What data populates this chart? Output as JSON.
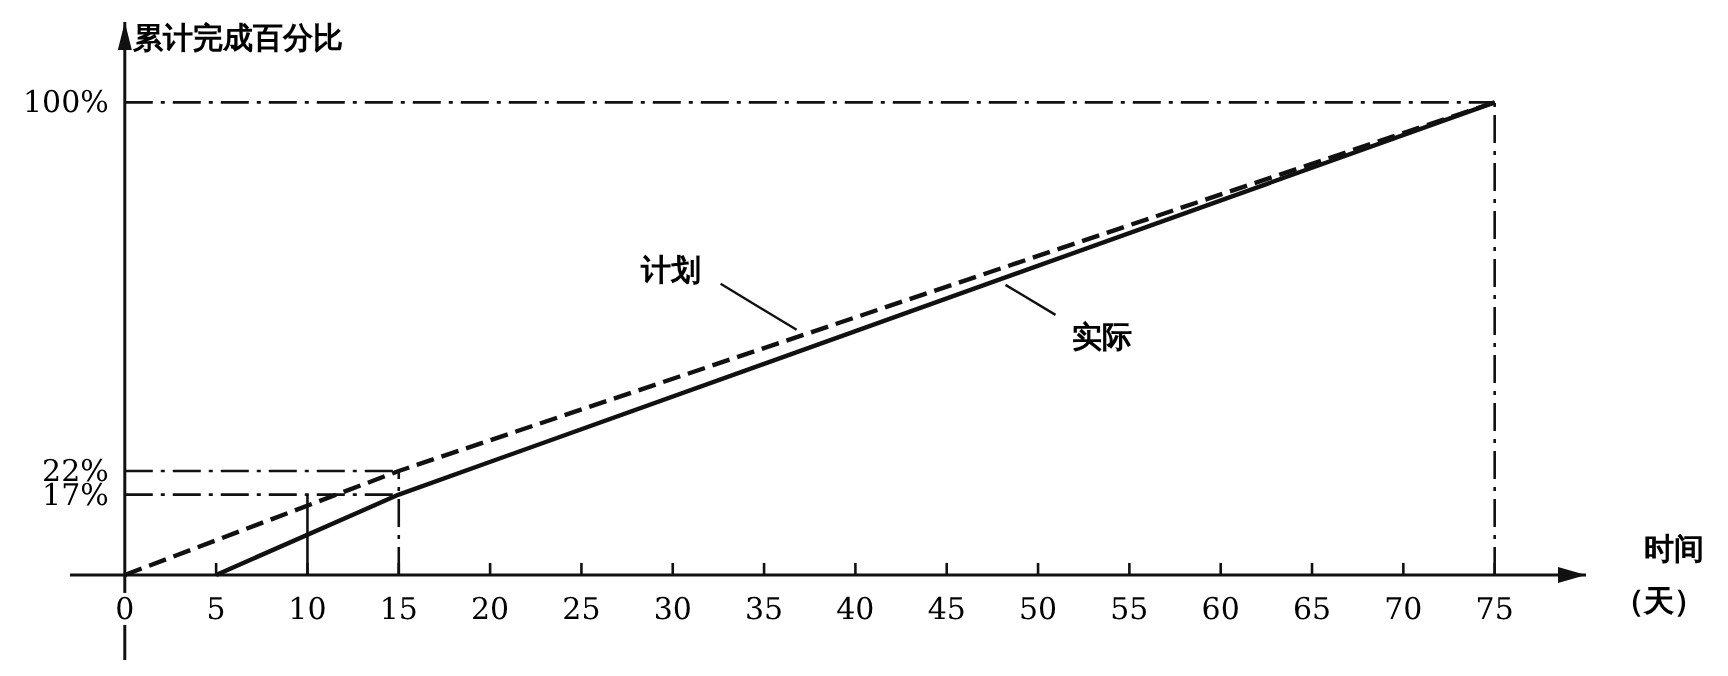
{
  "chart_data": {
    "type": "line",
    "ylabel": "累计完成百分比",
    "xlabel": "时间（天）",
    "xlim": [
      -3,
      80
    ],
    "ylim": [
      -18,
      117
    ],
    "xticks": [
      0,
      5,
      10,
      15,
      20,
      25,
      30,
      35,
      40,
      45,
      50,
      55,
      60,
      65,
      70,
      75
    ],
    "yticks": [
      {
        "value": 17,
        "label": "17%"
      },
      {
        "value": 22,
        "label": "22%"
      },
      {
        "value": 100,
        "label": "100%"
      }
    ],
    "series": [
      {
        "name": "计划",
        "color": "#111111",
        "line_style": "dashed",
        "x": [
          0,
          15,
          75
        ],
        "values": [
          0,
          22,
          100
        ]
      },
      {
        "name": "实际",
        "color": "#111111",
        "line_style": "solid",
        "x": [
          5,
          15,
          75
        ],
        "values": [
          0,
          17,
          100
        ]
      }
    ],
    "ref_lines": [
      {
        "axis": "y",
        "value": 100,
        "line_style": "dashed"
      },
      {
        "axis": "x",
        "value": 75,
        "line_style": "dashed"
      },
      {
        "axis": "y",
        "value": 22,
        "line_style": "dashed"
      },
      {
        "axis": "y",
        "value": 17,
        "line_style": "dashed"
      },
      {
        "axis": "x",
        "value": 15,
        "line_style": "dashed"
      },
      {
        "axis": "x",
        "value": 10,
        "line_style": "solid"
      }
    ],
    "grid": false,
    "marker": "none"
  }
}
